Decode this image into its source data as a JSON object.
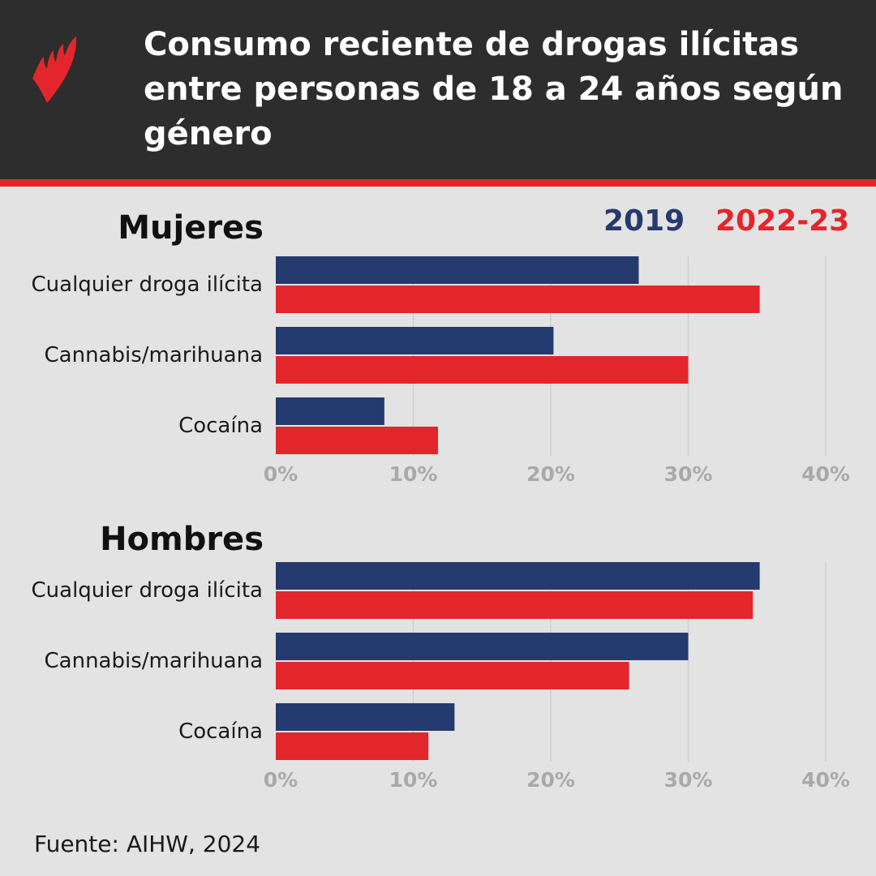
{
  "header": {
    "title": "Consumo reciente de drogas ilícitas entre personas de 18 a 24 años según género",
    "logo": "SBS logo",
    "colors": {
      "background": "#2d2d2d",
      "accent": "#e3262b"
    }
  },
  "legend": [
    {
      "label": "2019",
      "color": "#253a6e"
    },
    {
      "label": "2022-23",
      "color": "#e3262b"
    }
  ],
  "chart_data": [
    {
      "type": "bar",
      "orientation": "horizontal",
      "title": "Mujeres",
      "categories": [
        "Cualquier droga ilícita",
        "Cannabis/marihuana",
        "Cocaína"
      ],
      "series": [
        {
          "name": "2019",
          "values": [
            26.4,
            20.2,
            7.9
          ]
        },
        {
          "name": "2022-23",
          "values": [
            35.2,
            30.0,
            11.8
          ]
        }
      ],
      "xlim": [
        0,
        40
      ],
      "xticks": [
        "0%",
        "10%",
        "20%",
        "30%",
        "40%"
      ],
      "grid": true
    },
    {
      "type": "bar",
      "orientation": "horizontal",
      "title": "Hombres",
      "categories": [
        "Cualquier droga ilícita",
        "Cannabis/marihuana",
        "Cocaína"
      ],
      "series": [
        {
          "name": "2019",
          "values": [
            35.2,
            30.0,
            13.0
          ]
        },
        {
          "name": "2022-23",
          "values": [
            34.7,
            25.7,
            11.1
          ]
        }
      ],
      "xlim": [
        0,
        40
      ],
      "xticks": [
        "0%",
        "10%",
        "20%",
        "30%",
        "40%"
      ],
      "grid": true
    }
  ],
  "source": "Fuente: AIHW, 2024"
}
